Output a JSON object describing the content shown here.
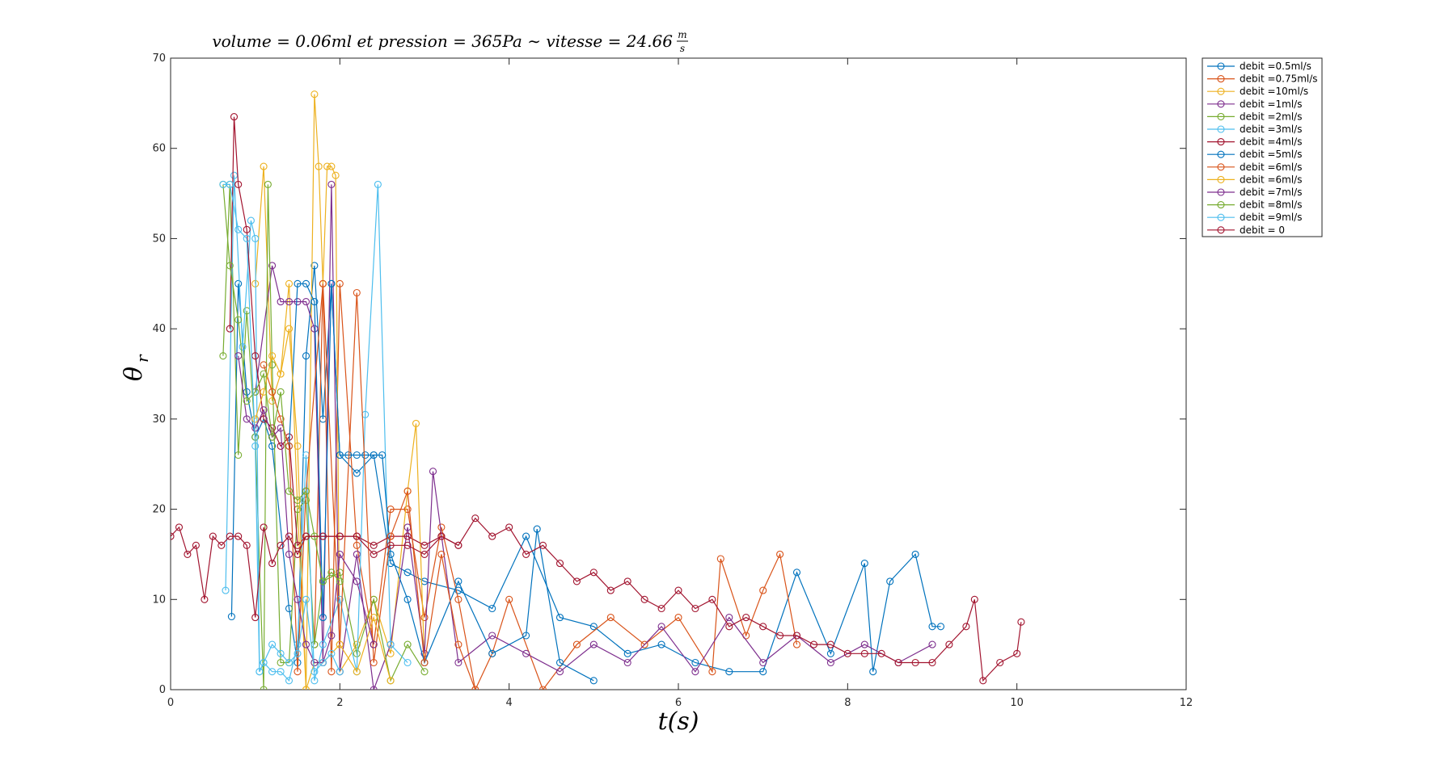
{
  "chart_data": {
    "type": "line",
    "title": "volume = 0.06ml et pression = 365Pa ~ vitesse = 24.66 m/s",
    "title_parts": {
      "main": "volume = 0.06ml et pression = 365Pa ∼ vitesse = 24.66",
      "frac_num": "m",
      "frac_den": "s"
    },
    "xlabel": "t(s)",
    "ylabel": "θr",
    "ylabel_parts": {
      "base": "θ",
      "sub": "r"
    },
    "xlim": [
      0,
      12
    ],
    "ylim": [
      0,
      70
    ],
    "xticks": [
      0,
      2,
      4,
      6,
      8,
      10,
      12
    ],
    "yticks": [
      0,
      10,
      20,
      30,
      40,
      50,
      60,
      70
    ],
    "grid": false,
    "legend_position": "outside-top-right",
    "marker": "circle",
    "series": [
      {
        "name": "debit =0.5ml/s",
        "color": "#0072BD",
        "x": [
          0.72,
          0.8,
          0.9,
          1.0,
          1.1,
          1.2,
          1.4,
          1.5,
          1.6,
          1.7,
          1.8,
          1.9,
          2.0,
          2.2,
          2.4,
          2.6,
          2.8,
          3.0,
          3.4,
          3.8,
          4.2,
          4.6,
          5.0,
          5.4,
          5.8,
          6.2,
          6.6,
          7.0,
          7.4,
          7.8,
          8.2,
          8.3,
          8.5,
          8.8,
          9.0,
          9.1
        ],
        "y": [
          8.1,
          45,
          33,
          28,
          30,
          27,
          9,
          3,
          37,
          47,
          30,
          45,
          26,
          24,
          26,
          14,
          13,
          12,
          11,
          9,
          17,
          8,
          7,
          4,
          5,
          3,
          2,
          2,
          13,
          4,
          14,
          2,
          12,
          15,
          7,
          7
        ]
      },
      {
        "name": "debit =0.75ml/s",
        "color": "#D95319",
        "x": [
          1.7,
          1.8,
          1.9,
          2.0,
          2.2,
          2.4,
          2.6,
          2.8,
          3.0,
          3.2,
          3.4,
          3.6,
          3.8,
          4.0,
          4.4,
          4.8,
          5.2,
          5.6,
          6.0,
          6.4,
          6.5,
          6.8,
          7.0,
          7.2,
          7.4
        ],
        "y": [
          5,
          45,
          2,
          45,
          16,
          5,
          20,
          20,
          8,
          18,
          10,
          0,
          4,
          10,
          0,
          5,
          8,
          5,
          8,
          2,
          14.5,
          6,
          11,
          15,
          5
        ]
      },
      {
        "name": "debit =10ml/s",
        "color": "#EDB120",
        "x": [
          1.0,
          1.1,
          1.2,
          1.3,
          1.4,
          1.5,
          1.6,
          1.7,
          1.75,
          1.8,
          1.85,
          1.9,
          1.95,
          2.0,
          2.2,
          2.4,
          2.6,
          2.8,
          2.9,
          3.0
        ],
        "y": [
          45,
          58,
          32,
          35,
          45,
          20,
          0,
          66,
          58,
          45,
          58,
          58,
          57,
          2,
          5,
          10,
          4,
          22,
          29.5,
          3
        ]
      },
      {
        "name": "debit =1ml/s",
        "color": "#7E2F8E",
        "x": [
          1.0,
          1.2,
          1.3,
          1.4,
          1.5,
          1.6,
          1.7,
          1.8,
          1.9,
          2.0,
          2.2,
          2.4,
          2.6,
          2.8,
          3.0,
          3.1,
          3.4,
          3.8,
          4.2,
          4.6,
          5.0,
          5.4,
          5.8,
          6.2,
          6.6,
          7.0,
          7.4,
          7.8,
          8.2,
          8.6,
          9.0
        ],
        "y": [
          33,
          47,
          43,
          43,
          43,
          43,
          40,
          3,
          56,
          2,
          15,
          0,
          5,
          18,
          4,
          24.2,
          3,
          6,
          4,
          2,
          5,
          3,
          7,
          2,
          8,
          3,
          6,
          3,
          5,
          3,
          5
        ]
      },
      {
        "name": "debit =2ml/s",
        "color": "#77AC30",
        "x": [
          0.62,
          0.7,
          0.8,
          0.9,
          1.0,
          1.1,
          1.15,
          1.2,
          1.3,
          1.4,
          1.5,
          1.6,
          1.7,
          1.8,
          2.0,
          2.2,
          2.4,
          2.6,
          2.8,
          3.0
        ],
        "y": [
          37,
          56,
          26,
          42,
          28,
          0,
          56,
          36,
          3,
          3,
          20,
          21,
          5,
          12,
          13,
          4,
          10,
          1,
          5,
          2
        ]
      },
      {
        "name": "debit =3ml/s",
        "color": "#4DBEEE",
        "x": [
          0.65,
          0.75,
          0.85,
          0.95,
          1.0,
          1.05,
          1.1,
          1.2,
          1.3,
          1.4,
          1.5,
          1.6,
          1.7,
          1.8,
          2.0,
          2.2,
          2.3,
          2.45,
          2.6,
          2.8
        ],
        "y": [
          11,
          57,
          38,
          52,
          50,
          2,
          3,
          2,
          2,
          1,
          5,
          26,
          1,
          5,
          10,
          2,
          30.5,
          56,
          5,
          3
        ]
      },
      {
        "name": "debit =4ml/s",
        "color": "#A2142F",
        "x": [
          0.7,
          0.75,
          0.8,
          0.9,
          1.0,
          1.1,
          1.2,
          1.3,
          1.4,
          1.5,
          1.6,
          1.8,
          2.0,
          2.2,
          2.4,
          2.6,
          2.8,
          3.0,
          3.2,
          3.4
        ],
        "y": [
          40,
          63.5,
          56,
          51,
          37,
          30,
          29,
          27,
          28,
          16,
          17,
          17,
          17,
          17,
          16,
          17,
          17,
          16,
          17,
          16
        ]
      },
      {
        "name": "debit =5ml/s",
        "color": "#0072BD",
        "x": [
          1.4,
          1.5,
          1.6,
          1.7,
          1.8,
          1.9,
          2.0,
          2.1,
          2.2,
          2.3,
          2.4,
          2.5,
          2.6,
          2.8,
          3.0,
          3.4,
          3.8,
          4.2,
          4.33,
          4.6,
          5.0
        ],
        "y": [
          27,
          45,
          45,
          43,
          8,
          45,
          26,
          26,
          26,
          26,
          26,
          26,
          15,
          10,
          3,
          12,
          4,
          6,
          17.8,
          3,
          1
        ]
      },
      {
        "name": "debit =6ml/s",
        "color": "#D95319",
        "x": [
          1.1,
          1.2,
          1.3,
          1.4,
          1.5,
          1.6,
          1.8,
          2.0,
          2.2,
          2.4,
          2.6,
          2.8,
          3.0,
          3.2,
          3.4,
          3.6
        ],
        "y": [
          36,
          33,
          30,
          27,
          2,
          22,
          45,
          5,
          44,
          3,
          17,
          22,
          3,
          15,
          5,
          0
        ]
      },
      {
        "name": "debit =6ml/s",
        "color": "#EDB120",
        "x": [
          1.0,
          1.1,
          1.2,
          1.3,
          1.4,
          1.5,
          1.6,
          1.7,
          1.8,
          2.0,
          2.2,
          2.4,
          2.6
        ],
        "y": [
          30,
          33,
          37,
          35,
          40,
          27,
          0,
          3,
          3,
          5,
          2,
          8,
          1
        ]
      },
      {
        "name": "debit =7ml/s",
        "color": "#7E2F8E",
        "x": [
          0.8,
          0.9,
          1.0,
          1.1,
          1.2,
          1.3,
          1.4,
          1.5,
          1.6,
          1.7,
          1.8,
          1.9,
          2.0,
          2.2,
          2.4
        ],
        "y": [
          37,
          30,
          29,
          31,
          28,
          29,
          15,
          10,
          5,
          3,
          3,
          6,
          15,
          12,
          5
        ]
      },
      {
        "name": "debit =8ml/s",
        "color": "#77AC30",
        "x": [
          0.62,
          0.7,
          0.8,
          0.9,
          1.0,
          1.1,
          1.2,
          1.3,
          1.4,
          1.5,
          1.6,
          1.7,
          1.8,
          1.9,
          2.0
        ],
        "y": [
          56,
          47,
          41,
          32,
          33,
          35,
          28,
          33,
          22,
          21,
          22,
          17,
          12,
          13,
          12
        ]
      },
      {
        "name": "debit =9ml/s",
        "color": "#4DBEEE",
        "x": [
          0.62,
          0.7,
          0.8,
          0.9,
          1.0,
          1.05,
          1.1,
          1.2,
          1.3,
          1.4,
          1.5,
          1.6,
          1.7,
          1.8,
          1.9,
          2.0
        ],
        "y": [
          56,
          56,
          51,
          50,
          27,
          2,
          3,
          5,
          4,
          3,
          4,
          10,
          2,
          3,
          4,
          2
        ]
      },
      {
        "name": "debit = 0",
        "color": "#A2142F",
        "x": [
          0.0,
          0.1,
          0.2,
          0.3,
          0.4,
          0.5,
          0.6,
          0.7,
          0.8,
          0.9,
          1.0,
          1.1,
          1.2,
          1.3,
          1.4,
          1.5,
          1.6,
          1.8,
          2.0,
          2.2,
          2.4,
          2.6,
          2.8,
          3.0,
          3.2,
          3.4,
          3.6,
          3.8,
          4.0,
          4.2,
          4.4,
          4.6,
          4.8,
          5.0,
          5.2,
          5.4,
          5.6,
          5.8,
          6.0,
          6.2,
          6.4,
          6.6,
          6.8,
          7.0,
          7.2,
          7.4,
          7.6,
          7.8,
          8.0,
          8.2,
          8.4,
          8.6,
          8.8,
          9.0,
          9.2,
          9.4,
          9.5,
          9.6,
          9.8,
          10.0,
          10.05
        ],
        "y": [
          17,
          18,
          15,
          16,
          10,
          17,
          16,
          17,
          17,
          16,
          8,
          18,
          14,
          16,
          17,
          15,
          17,
          17,
          17,
          17,
          15,
          16,
          16,
          15,
          17,
          16,
          19,
          17,
          18,
          15,
          16,
          14,
          12,
          13,
          11,
          12,
          10,
          9,
          11,
          9,
          10,
          7,
          8,
          7,
          6,
          6,
          5,
          5,
          4,
          4,
          4,
          3,
          3,
          3,
          5,
          7,
          10,
          1,
          3,
          4,
          7.5
        ]
      }
    ]
  }
}
